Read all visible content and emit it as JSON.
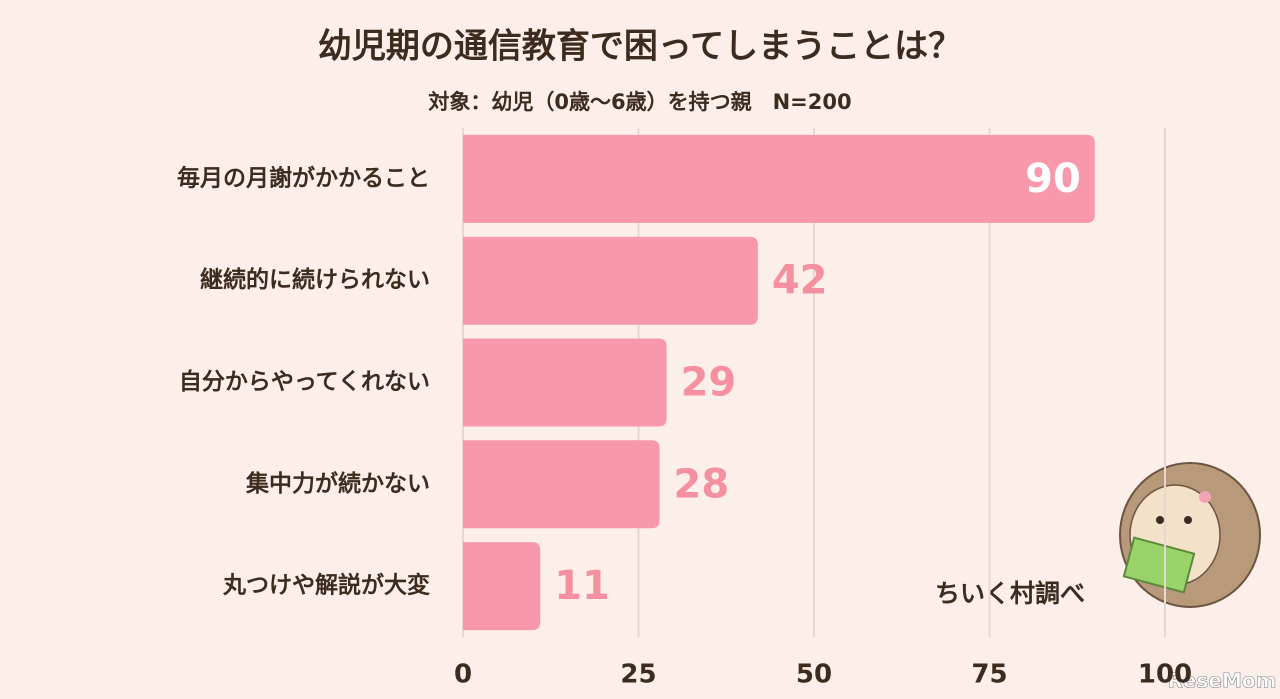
{
  "chart_data": {
    "type": "hbar",
    "title": "幼児期の通信教育で困ってしまうことは？",
    "subtitle": "対象：幼児（0歳～6歳）を持つ親　N=200",
    "categories": [
      "毎月の月謝がかかること",
      "継続的に続けられない",
      "自分からやってくれない",
      "集中力が続かない",
      "丸つけや解説が大変"
    ],
    "values": [
      90,
      42,
      29,
      28,
      11
    ],
    "color": "#f799aa",
    "label_color": "#f4909f",
    "xlim": [
      0,
      100
    ],
    "xticks": [
      0,
      25,
      50,
      75,
      100
    ],
    "grid": true,
    "source": "ちいく村調べ",
    "watermark": "ReseMom"
  }
}
